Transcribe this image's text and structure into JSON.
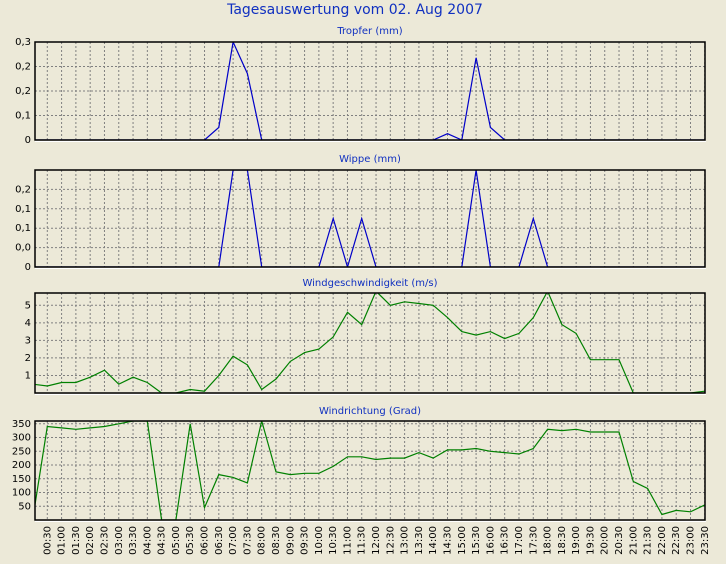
{
  "title": "Tagesauswertung vom 02. Aug 2007",
  "categories": [
    null,
    "00:30",
    "01:00",
    "01:30",
    "02:00",
    "02:30",
    "03:00",
    "03:30",
    "04:00",
    "04:30",
    "05:00",
    "05:30",
    "06:00",
    "06:30",
    "07:00",
    "07:30",
    "08:00",
    "08:30",
    "09:00",
    "09:30",
    "10:00",
    "10:30",
    "11:00",
    "11:30",
    "12:00",
    "12:30",
    "13:00",
    "13:30",
    "14:00",
    "14:30",
    "15:00",
    "15:30",
    "16:00",
    "16:30",
    "17:00",
    "17:30",
    "18:00",
    "18:30",
    "19:00",
    "19:30",
    "20:00",
    "20:30",
    "21:00",
    "21:30",
    "22:00",
    "22:30",
    "23:00",
    "23:30"
  ],
  "chart_data": [
    {
      "type": "line",
      "title": "Tropfer (mm)",
      "color": "#0000c8",
      "grid": true,
      "ylim": [
        0,
        0.31
      ],
      "yticks": [
        0,
        {
          "value": 0.0775,
          "label": "0,1"
        },
        {
          "value": 0.155,
          "label": "0,2"
        },
        {
          "value": 0.2325,
          "label": "0,2"
        },
        {
          "value": 0.31,
          "label": "0,3"
        }
      ],
      "values": [
        0,
        0,
        0,
        0,
        0,
        0,
        0,
        0,
        0,
        0,
        0,
        0,
        0,
        0.04,
        0.31,
        0.21,
        0,
        0,
        0,
        0,
        0,
        0,
        0,
        0,
        0,
        0,
        0,
        0,
        0,
        0.02,
        0,
        0.26,
        0.04,
        0,
        0,
        0,
        0,
        0,
        0,
        0,
        0,
        0,
        0,
        0,
        0,
        0,
        0,
        0
      ]
    },
    {
      "type": "line",
      "title": "Wippe (mm)",
      "color": "#0000c8",
      "grid": true,
      "ylim": [
        0,
        0.2
      ],
      "yticks": [
        0,
        {
          "value": 0.04,
          "label": "0,0"
        },
        {
          "value": 0.08,
          "label": "0,1"
        },
        {
          "value": 0.12,
          "label": "0,1"
        },
        {
          "value": 0.16,
          "label": "0,2"
        }
      ],
      "values": [
        0,
        0,
        0,
        0,
        0,
        0,
        0,
        0,
        0,
        0,
        0,
        0,
        0,
        0,
        0.2,
        0.2,
        0,
        0,
        0,
        0,
        0,
        0.1,
        0,
        0.1,
        0,
        0,
        0,
        0,
        0,
        0,
        0,
        0.2,
        0,
        0,
        0,
        0.1,
        0,
        0,
        0,
        0,
        0,
        0,
        0,
        0,
        0,
        0,
        0,
        0
      ]
    },
    {
      "type": "line",
      "title": "Windgeschwindigkeit (m/s)",
      "color": "#008000",
      "grid": true,
      "ylim": [
        0,
        5.7
      ],
      "yticks": [
        1,
        2,
        3,
        4,
        5
      ],
      "values": [
        0.5,
        0.4,
        0.6,
        0.6,
        0.9,
        1.3,
        0.5,
        0.9,
        0.6,
        0,
        0,
        0.2,
        0.1,
        1.0,
        2.1,
        1.6,
        0.2,
        0.8,
        1.8,
        2.3,
        2.5,
        3.2,
        4.6,
        3.9,
        5.8,
        5.0,
        5.2,
        5.1,
        5.0,
        4.3,
        3.5,
        3.3,
        3.5,
        3.1,
        3.4,
        4.3,
        5.8,
        3.9,
        3.4,
        1.9,
        1.9,
        1.9,
        0,
        0,
        0,
        0,
        0,
        0.1
      ]
    },
    {
      "type": "line",
      "title": "Windrichtung (Grad)",
      "color": "#008000",
      "grid": true,
      "ylim": [
        0,
        360
      ],
      "yticks": [
        50,
        100,
        150,
        200,
        250,
        300,
        350
      ],
      "values": [
        10,
        340,
        335,
        330,
        335,
        340,
        350,
        360,
        360,
        0,
        0,
        350,
        45,
        165,
        155,
        135,
        360,
        175,
        165,
        170,
        170,
        195,
        230,
        230,
        220,
        225,
        225,
        245,
        225,
        255,
        255,
        260,
        250,
        245,
        240,
        260,
        330,
        325,
        330,
        320,
        320,
        320,
        140,
        115,
        20,
        35,
        30,
        55
      ]
    }
  ]
}
